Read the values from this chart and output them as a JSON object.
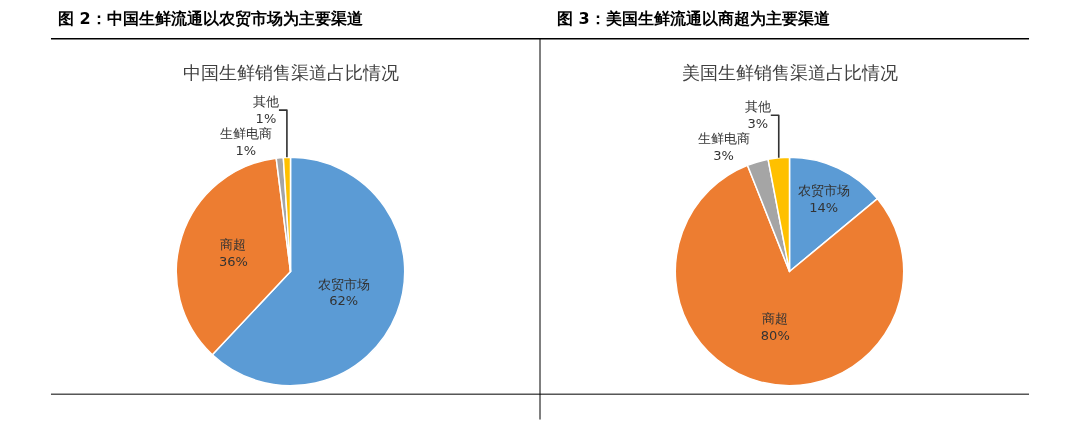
{
  "chart_data": [
    {
      "type": "pie",
      "title": "图 2：中国生鲜流通以农贸市场为主要渠道",
      "subtitle": "中国生鲜销售渠道占比情况",
      "categories": [
        "农贸市场",
        "商超",
        "生鲜电商",
        "其他"
      ],
      "values": [
        62,
        36,
        1,
        1
      ],
      "value_labels": [
        "62%",
        "36%",
        "1%",
        "1%"
      ],
      "colors": [
        "#5b9bd5",
        "#ed7d31",
        "#a5a5a5",
        "#ffc000"
      ],
      "legend": false
    },
    {
      "type": "pie",
      "title": "图 3：美国生鲜流通以商超为主要渠道",
      "subtitle": "美国生鲜销售渠道占比情况",
      "categories": [
        "农贸市场",
        "商超",
        "生鲜电商",
        "其他"
      ],
      "values": [
        14,
        80,
        3,
        3
      ],
      "value_labels": [
        "14%",
        "80%",
        "3%",
        "3%"
      ],
      "colors": [
        "#5b9bd5",
        "#ed7d31",
        "#a5a5a5",
        "#ffc000"
      ],
      "legend": false
    }
  ]
}
